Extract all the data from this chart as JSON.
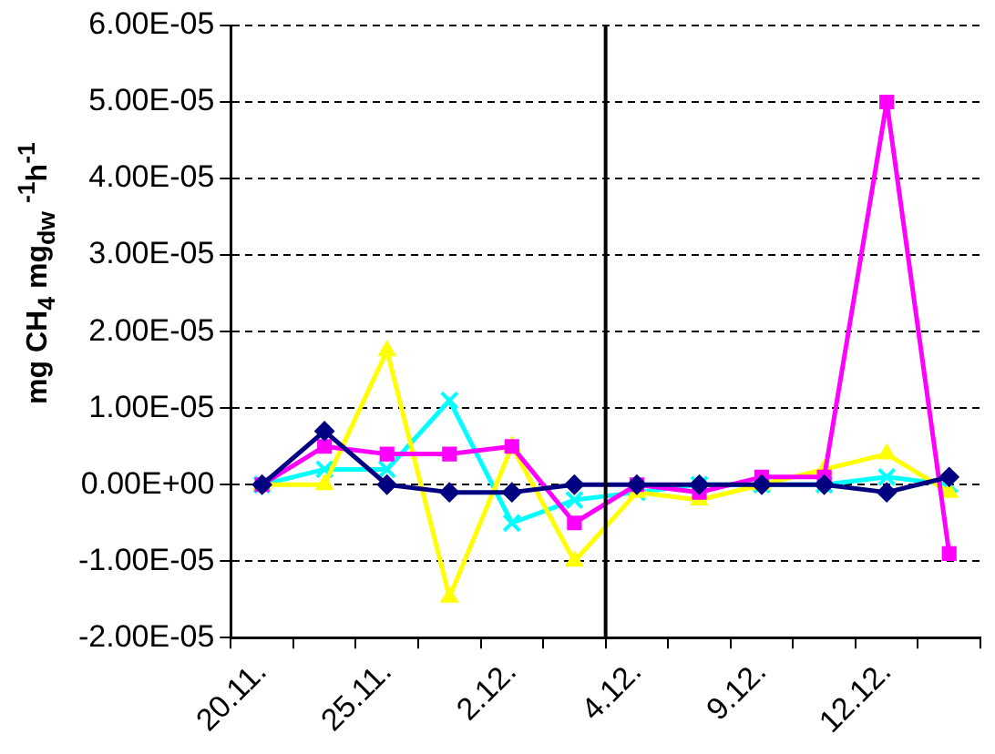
{
  "chart_data": {
    "type": "line",
    "ylabel": "mg CH$_{4}$ mg$_{dw}$ $^{-1}$h$^{-1}$",
    "categories": [
      "20.11.",
      null,
      "25.11.",
      null,
      "2.12.",
      null,
      "4.12.",
      null,
      "9.12.",
      null,
      "12.12.",
      null
    ],
    "series": [
      {
        "color": "#000080",
        "marker": "diamond",
        "values": [
          0,
          7e-06,
          0,
          -1e-06,
          -1e-06,
          0,
          0,
          0,
          0,
          0,
          -1e-06,
          1e-06
        ]
      },
      {
        "color": "#ff00ff",
        "marker": "square",
        "values": [
          0,
          5e-06,
          4e-06,
          4e-06,
          5e-06,
          -5e-06,
          0,
          -1e-06,
          1e-06,
          1e-06,
          5e-05,
          -9e-06
        ]
      },
      {
        "color": "#ffff00",
        "marker": "triangle",
        "values": [
          0,
          0,
          1.75e-05,
          -1.47e-05,
          5e-06,
          -1e-05,
          -1e-06,
          -2e-06,
          0,
          2e-06,
          4e-06,
          -1e-06
        ]
      },
      {
        "color": "#00ffff",
        "marker": "cross",
        "values": [
          0,
          2e-06,
          2e-06,
          1.1e-05,
          -5e-06,
          -2e-06,
          -1e-06,
          0,
          0,
          0,
          1e-06,
          0
        ]
      }
    ],
    "ylim": [
      -2e-05,
      6e-05
    ],
    "yticks": [
      {
        "value": -2e-05,
        "label": "-2.00E-05"
      },
      {
        "value": -1e-05,
        "label": "-1.00E-05"
      },
      {
        "value": 0,
        "label": "0.00E+00"
      },
      {
        "value": 1e-05,
        "label": "1.00E-05"
      },
      {
        "value": 2e-05,
        "label": "2.00E-05"
      },
      {
        "value": 3e-05,
        "label": "3.00E-05"
      },
      {
        "value": 4e-05,
        "label": "4.00E-05"
      },
      {
        "value": 5e-05,
        "label": "5.00E-05"
      },
      {
        "value": 6e-05,
        "label": "6.00E-05"
      }
    ],
    "grid": "y",
    "legend": false,
    "line_style": "solid"
  }
}
